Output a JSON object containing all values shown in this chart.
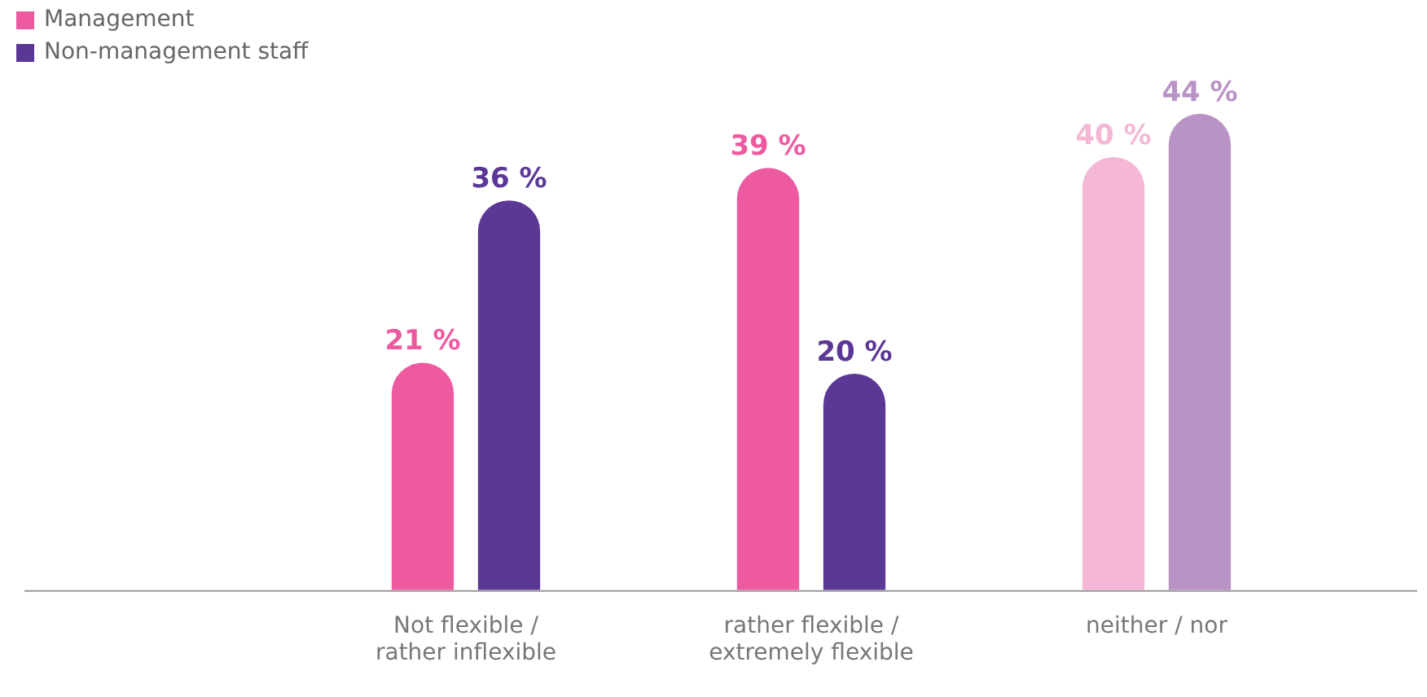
{
  "chart_data": {
    "type": "bar",
    "categories": [
      "Not flexible / rather inflexible",
      "rather flexible / extremely flexible",
      "neither / nor"
    ],
    "series": [
      {
        "name": "Management",
        "color": "#ee5a9f",
        "colors": [
          "#ee5a9f",
          "#ee5a9f",
          "#f4b8d6"
        ],
        "values": [
          21,
          39,
          40
        ],
        "value_labels": [
          "21 %",
          "39 %",
          "40 %"
        ]
      },
      {
        "name": "Non-management staff",
        "color": "#5b3796",
        "colors": [
          "#5b3796",
          "#5b3796",
          "#b993c6"
        ],
        "values": [
          36,
          20,
          44
        ],
        "value_labels": [
          "36 %",
          "20 %",
          "44 %"
        ]
      }
    ],
    "legend": "top left",
    "grid": false,
    "tick_labels": "x"
  }
}
